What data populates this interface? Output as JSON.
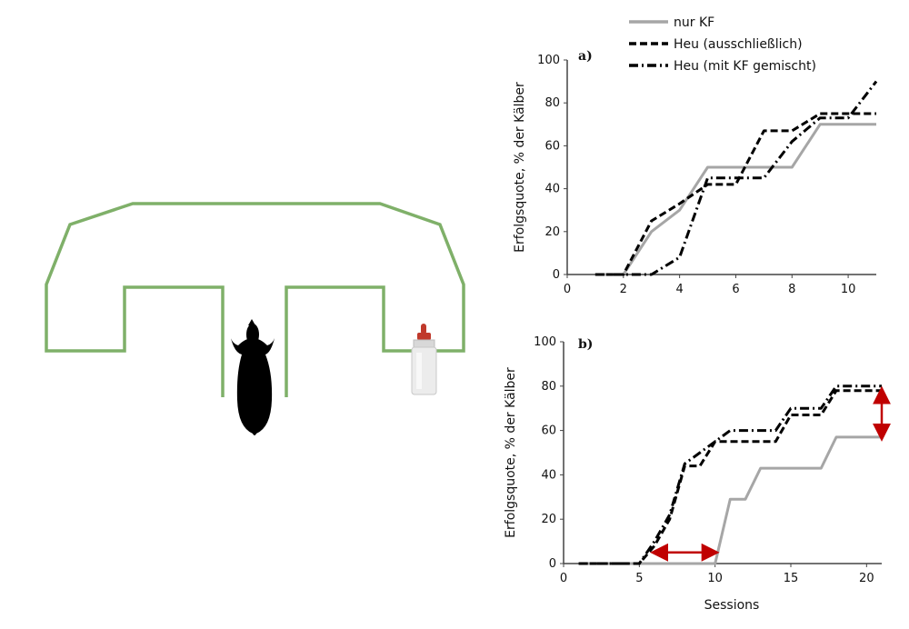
{
  "colors": {
    "maze": "#7fb069",
    "series_gray": "#a6a6a6",
    "series_black": "#000000",
    "arrow": "#c00000",
    "axis": "#444444"
  },
  "illustration": {
    "calf_icon": "calf-silhouette-icon",
    "bottle_icon": "milk-bottle-icon"
  },
  "legend": {
    "items": [
      {
        "label": "nur KF",
        "style": "solid-gray"
      },
      {
        "label": "Heu (ausschließlich)",
        "style": "dashed-black"
      },
      {
        "label": "Heu (mit KF gemischt)",
        "style": "dashdot-black"
      }
    ]
  },
  "chart_data": [
    {
      "panel_label": "a)",
      "type": "line",
      "xlabel": "",
      "ylabel": "Erfolgsquote, % der Kälber",
      "xlim": [
        0,
        11
      ],
      "ylim": [
        0,
        100
      ],
      "xticks": [
        "0",
        "2",
        "4",
        "6",
        "8",
        "10"
      ],
      "yticks": [
        "0",
        "20",
        "40",
        "60",
        "80",
        "100"
      ],
      "grid": false,
      "series": [
        {
          "name": "nur KF",
          "style": "solid-gray",
          "x": [
            1,
            2,
            3,
            4,
            5,
            6,
            7,
            8,
            9,
            10,
            11
          ],
          "y": [
            0,
            0,
            20,
            30,
            50,
            50,
            50,
            50,
            70,
            70,
            70
          ]
        },
        {
          "name": "Heu (ausschließlich)",
          "style": "dashed-black",
          "x": [
            1,
            2,
            3,
            4,
            5,
            6,
            7,
            8,
            9,
            10,
            11
          ],
          "y": [
            0,
            0,
            25,
            33,
            42,
            42,
            67,
            67,
            75,
            75,
            75
          ]
        },
        {
          "name": "Heu (mit KF gemischt)",
          "style": "dashdot-black",
          "x": [
            1,
            2,
            3,
            4,
            5,
            6,
            7,
            8,
            9,
            10,
            11
          ],
          "y": [
            0,
            0,
            0,
            8,
            45,
            45,
            45,
            62,
            73,
            73,
            90
          ]
        }
      ]
    },
    {
      "panel_label": "b)",
      "type": "line",
      "xlabel": "Sessions",
      "ylabel": "Erfolgsquote, % der Kälber",
      "xlim": [
        0,
        21
      ],
      "ylim": [
        0,
        100
      ],
      "xticks": [
        "0",
        "5",
        "10",
        "15",
        "20"
      ],
      "yticks": [
        "0",
        "20",
        "40",
        "60",
        "80",
        "100"
      ],
      "grid": false,
      "series": [
        {
          "name": "nur KF",
          "style": "solid-gray",
          "x": [
            1,
            2,
            3,
            4,
            5,
            6,
            7,
            8,
            9,
            10,
            11,
            12,
            13,
            14,
            15,
            16,
            17,
            18,
            19,
            20,
            21
          ],
          "y": [
            0,
            0,
            0,
            0,
            0,
            0,
            0,
            0,
            0,
            0,
            29,
            29,
            43,
            43,
            43,
            43,
            43,
            57,
            57,
            57,
            57
          ]
        },
        {
          "name": "Heu (ausschließlich)",
          "style": "dashed-black",
          "x": [
            1,
            2,
            3,
            4,
            5,
            6,
            7,
            8,
            9,
            10,
            11,
            12,
            13,
            14,
            15,
            16,
            17,
            18,
            19,
            20,
            21
          ],
          "y": [
            0,
            0,
            0,
            0,
            0,
            8,
            20,
            44,
            44,
            55,
            55,
            55,
            55,
            55,
            67,
            67,
            67,
            78,
            78,
            78,
            78
          ]
        },
        {
          "name": "Heu (mit KF gemischt)",
          "style": "dashdot-black",
          "x": [
            1,
            2,
            3,
            4,
            5,
            6,
            7,
            8,
            9,
            10,
            11,
            12,
            13,
            14,
            15,
            16,
            17,
            18,
            19,
            20,
            21
          ],
          "y": [
            0,
            0,
            0,
            0,
            0,
            10,
            22,
            45,
            50,
            55,
            60,
            60,
            60,
            60,
            70,
            70,
            70,
            80,
            80,
            80,
            80
          ]
        }
      ],
      "annotations": [
        {
          "type": "double-arrow",
          "orientation": "horizontal",
          "from_x": 6,
          "to_x": 10,
          "y": 5
        },
        {
          "type": "double-arrow",
          "orientation": "vertical",
          "x": 21,
          "from_y": 57,
          "to_y": 78
        }
      ]
    }
  ]
}
